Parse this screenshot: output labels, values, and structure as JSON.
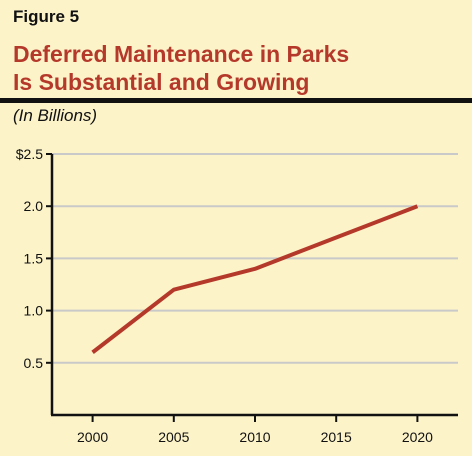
{
  "figure_label": "Figure 5",
  "title_lines": [
    "Deferred Maintenance in Parks",
    "Is Substantial and Growing"
  ],
  "units_label": "(In Billions)",
  "colors": {
    "background": "#FCF3C9",
    "title": "#B5392B",
    "line": "#B5392B",
    "grid": "#C9C9C9",
    "axis": "#111111"
  },
  "chart_data": {
    "type": "line",
    "title": "Deferred Maintenance in Parks Is Substantial and Growing",
    "ylabel": "(In Billions)",
    "xlabel": "",
    "x": [
      2000,
      2005,
      2010,
      2015,
      2020
    ],
    "y_tick_values": [
      0.5,
      1.0,
      1.5,
      2.0,
      2.5
    ],
    "y_tick_labels": [
      "0.5",
      "1.0",
      "1.5",
      "2.0",
      "$2.5"
    ],
    "x_tick_labels": [
      "2000",
      "2005",
      "2010",
      "2015",
      "2020"
    ],
    "xlim": [
      1997.5,
      2022.5
    ],
    "ylim": [
      0,
      2.5
    ],
    "grid": true,
    "series": [
      {
        "values": [
          0.6,
          1.2,
          1.4,
          1.7,
          2.0
        ]
      }
    ]
  }
}
